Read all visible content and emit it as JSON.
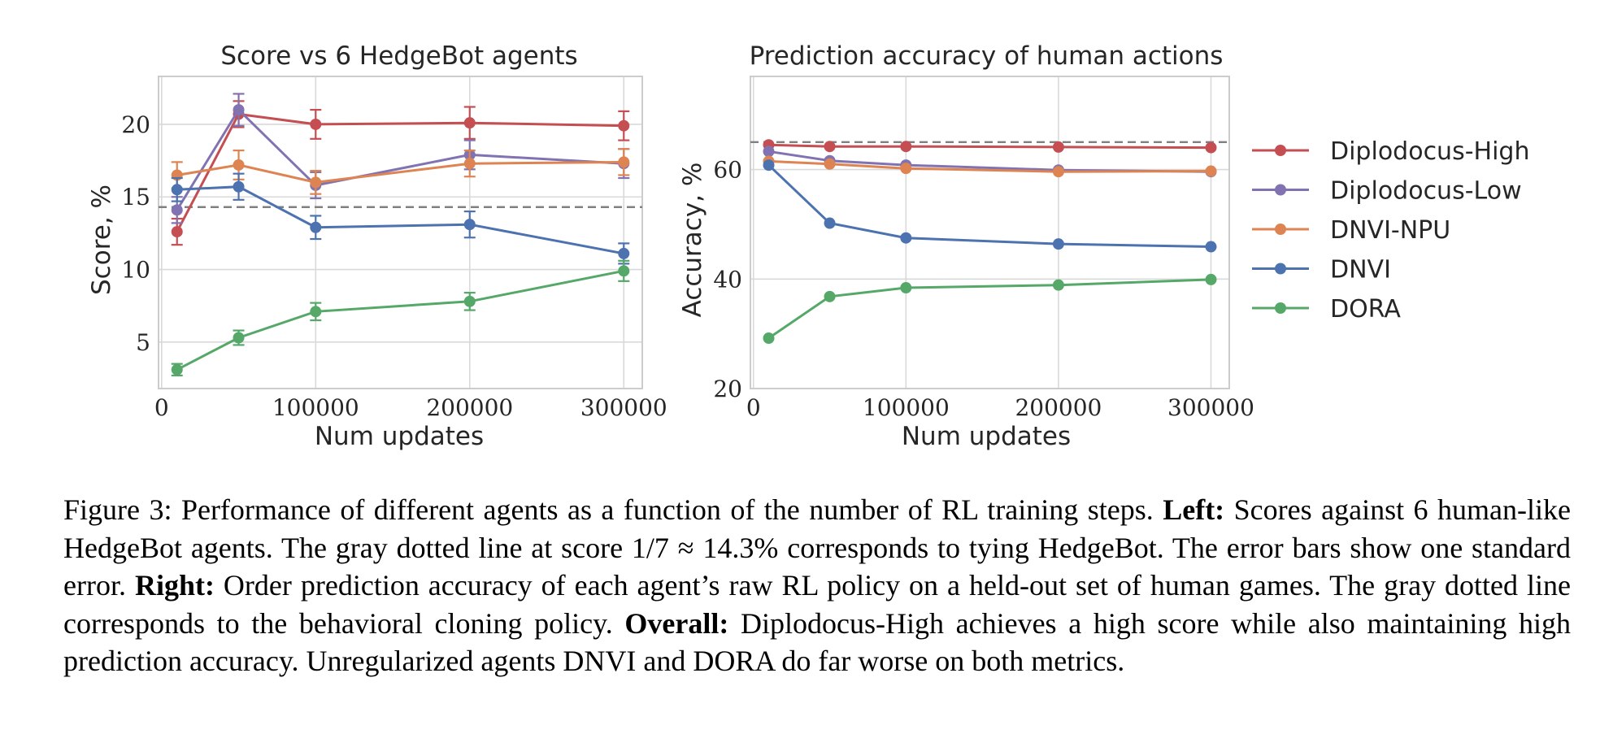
{
  "colors": {
    "Diplodocus-High": "#c44e52",
    "Diplodocus-Low": "#8172b2",
    "DNVI-NPU": "#dd8452",
    "DNVI": "#4c72b0",
    "DORA": "#55a868",
    "baseline": "#808080",
    "grid": "#d9d9d9",
    "axis": "#cccccc"
  },
  "legend": [
    "Diplodocus-High",
    "Diplodocus-Low",
    "DNVI-NPU",
    "DNVI",
    "DORA"
  ],
  "chart_data": [
    {
      "type": "line",
      "title": "Score vs 6 HedgeBot agents",
      "xlabel": "Num updates",
      "ylabel": "Score, %",
      "xlim": [
        -2000,
        312000
      ],
      "ylim": [
        1.8,
        23.3
      ],
      "xticks": [
        0,
        100000,
        200000,
        300000
      ],
      "yticks": [
        5,
        10,
        15,
        20
      ],
      "grid": true,
      "baseline": 14.3,
      "x": [
        10000,
        50000,
        100000,
        200000,
        300000
      ],
      "series": [
        {
          "name": "Diplodocus-High",
          "values": [
            12.6,
            20.7,
            20.0,
            20.1,
            19.9
          ],
          "errors": [
            0.9,
            0.9,
            1.0,
            1.1,
            1.0
          ]
        },
        {
          "name": "Diplodocus-Low",
          "values": [
            14.1,
            21.0,
            15.8,
            17.9,
            17.3
          ],
          "errors": [
            0.9,
            1.1,
            0.9,
            1.0,
            1.0
          ]
        },
        {
          "name": "DNVI-NPU",
          "values": [
            16.5,
            17.2,
            16.0,
            17.3,
            17.4
          ],
          "errors": [
            0.9,
            1.0,
            0.8,
            0.9,
            0.9
          ]
        },
        {
          "name": "DNVI",
          "values": [
            15.5,
            15.7,
            12.9,
            13.1,
            11.1
          ],
          "errors": [
            0.8,
            0.9,
            0.8,
            0.9,
            0.7
          ]
        },
        {
          "name": "DORA",
          "values": [
            3.1,
            5.3,
            7.1,
            7.8,
            9.9
          ],
          "errors": [
            0.4,
            0.5,
            0.6,
            0.6,
            0.7
          ]
        }
      ]
    },
    {
      "type": "line",
      "title": "Prediction accuracy of human actions",
      "xlabel": "Num updates",
      "ylabel": "Accuracy, %",
      "xlim": [
        -2000,
        312000
      ],
      "ylim": [
        20,
        77
      ],
      "xticks": [
        0,
        100000,
        200000,
        300000
      ],
      "yticks": [
        20,
        40,
        60
      ],
      "grid": true,
      "baseline": 65.0,
      "x": [
        10000,
        50000,
        100000,
        200000,
        300000
      ],
      "series": [
        {
          "name": "Diplodocus-High",
          "values": [
            64.5,
            64.2,
            64.2,
            64.1,
            64.0
          ]
        },
        {
          "name": "Diplodocus-Low",
          "values": [
            63.3,
            61.6,
            60.8,
            59.9,
            59.6
          ]
        },
        {
          "name": "DNVI-NPU",
          "values": [
            61.5,
            61.0,
            60.2,
            59.6,
            59.7
          ]
        },
        {
          "name": "DNVI",
          "values": [
            60.8,
            50.2,
            47.5,
            46.4,
            45.9
          ]
        },
        {
          "name": "DORA",
          "values": [
            29.2,
            36.8,
            38.4,
            38.9,
            39.9
          ]
        }
      ]
    }
  ],
  "caption": {
    "prefix": "Figure 3:  Performance of different agents as a function of the number of RL training steps. ",
    "left_head": "Left:",
    "left_text": " Scores against 6 human-like HedgeBot agents.  The gray dotted line at score 1/7 ≈ 14.3% corresponds to tying HedgeBot.  The error bars show one standard error. ",
    "right_head": "Right:",
    "right_text": " Order prediction accuracy of each agent’s raw RL policy on a held-out set of human games.  The gray dotted line corresponds to the behavioral cloning policy. ",
    "overall_head": "Overall:",
    "overall_text": " Diplodocus-High achieves a high score while also maintaining high prediction accuracy. Unregularized agents DNVI and DORA do far worse on both metrics."
  }
}
